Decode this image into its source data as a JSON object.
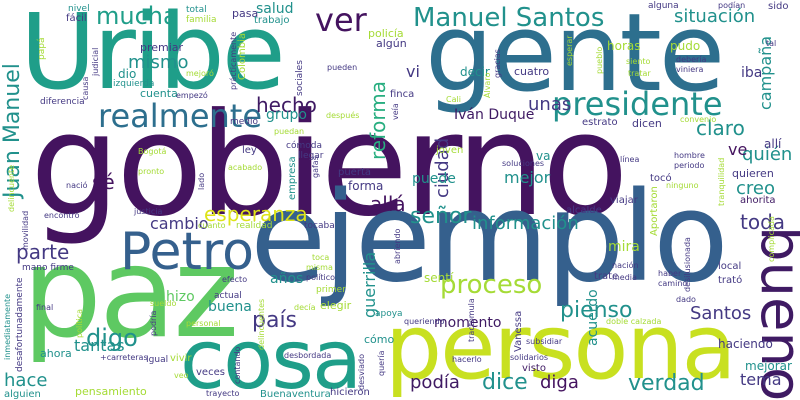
{
  "words": {
    "gobierno": "gobierno",
    "ejemplo": "ejemplo",
    "paz": "paz",
    "gente": "gente",
    "uribe": "Uribe",
    "persona": "persona",
    "cosa": "cosa",
    "bueno": "bueno",
    "petro": "Petro",
    "presidente": "presidente",
    "realmente": "realmente",
    "manuel_santos": "Manuel Santos",
    "juan_manuel": "Juan Manuel",
    "mucha": "mucha",
    "ver": "ver",
    "hecho": "hecho",
    "proceso": "proceso",
    "digo": "digo",
    "pais": "país",
    "reforma": "reforma",
    "esperanza": "esperanza",
    "claro": "claro",
    "verdad": "verdad",
    "senor": "señor",
    "informacion": "información",
    "dice": "dice",
    "pienso": "pienso",
    "santos": "Santos",
    "parte": "parte",
    "cambio": "cambio",
    "toda": "toda",
    "alla": "allá",
    "quien": "quién",
    "situacion": "situación",
    "campana": "campaña",
    "hace": "hace",
    "tantas": "tantas",
    "guerrilla": "guerrilla",
    "ciudad": "ciudad",
    "mejor": "mejor",
    "podia": "podía",
    "diga": "diga",
    "tema": "tema",
    "creo": "creo",
    "salud": "salud",
    "ivan_duque": "Iván Duque",
    "unas": "unas",
    "mismo": "mismo",
    "buena": "buena",
    "hizo": "hizo",
    "anos": "años",
    "se": "sé",
    "ve": "ve",
    "vi": "vi",
    "grupo": "grupo",
    "puede": "puede",
    "momento": "momento",
    "acuerdo": "acuerdo",
    "mira": "mira",
    "alli": "allí",
    "iba": "iba",
    "pudo": "pudo",
    "decir": "decir",
    "cuatro": "cuatro",
    "horas": "horas",
    "dio": "dio",
    "cuenta": "cuenta",
    "premiar": "premiar",
    "izquierda": "izquierda",
    "colombia": "Colombia",
    "policia": "policía",
    "algun": "algún",
    "pasa": "pasa",
    "trabajo": "trabajo",
    "total": "total",
    "familia": "familia",
    "facil": "fácil",
    "nivel": "nivel",
    "papa": "papá",
    "forma": "forma",
    "puerta": "puerta",
    "empresa": "empresa",
    "va": "va",
    "quieren": "quieren",
    "ahorita": "ahorita",
    "alcalde": "alcalde",
    "viajar": "viajar",
    "toco": "tocó",
    "local": "local",
    "trato": "trató",
    "senti": "sentí",
    "trate": "trate",
    "visto": "visto",
    "mejorar": "mejorar",
    "haciendo": "haciendo",
    "ahora": "ahora",
    "pensamiento": "pensamiento",
    "alguien": "alguien",
    "veces": "veces",
    "vivir": "vivir",
    "buenaventura": "Buenaventura",
    "hicieron": "hicieron",
    "elegir": "elegir",
    "primer": "primer",
    "actual": "actual",
    "apoya": "apoya",
    "mano_firme": "mano firme",
    "realidad": "realidad",
    "tocaba": "tocaba",
    "como": "cómo",
    "dicen": "dicen",
    "estrato": "estrato",
    "joven": "joven",
    "finca": "finca",
    "sociales": "sociales",
    "despues": "después",
    "medio": "medio",
    "ley": "ley",
    "comoda": "cómoda",
    "llegar": "llegar",
    "igual": "Igual",
    "bogota": "Bogotá",
    "pronto": "pronto",
    "acabado": "acabado",
    "justicia": "justicia",
    "encontro": "encontró",
    "nacio": "nació",
    "delincuente": "delincuente",
    "movilidad": "movilidad",
    "diferencia": "diferencia",
    "empezo": "empezó",
    "mejoro": "mejoró",
    "practicamente": "prácticamente",
    "pueden": "pueden",
    "alguna": "alguna",
    "podian": "podían",
    "sido": "sido",
    "tal": "tal",
    "deberia": "debería",
    "viniera": "viniera",
    "siento": "siento",
    "tratar": "tratar",
    "convenio": "convenio",
    "hombre": "hombre",
    "periodo": "periodo",
    "ninguno": "ninguno",
    "linea": "línea",
    "soluciones": "soluciones",
    "subsidiar": "subsidiar",
    "solidarios": "solidarios",
    "hacerlo": "hacerlo",
    "queriendo": "queriendo",
    "doble_calzada": "doble calzada",
    "dado": "dado",
    "camino": "camino",
    "haber": "haber",
    "media": "media",
    "nacion": "nación",
    "aportaron": "Aportaron",
    "tranquilidad": "tranquilidad",
    "desilusionada": "desilusionada",
    "complicada": "complicada",
    "vanessa": "Vanessa",
    "desviado": "desviado",
    "queria": "quería",
    "desbordada": "desbordada",
    "delincuentes": "delincuentes",
    "contando": "contando",
    "trayecto": "trayecto",
    "personal": "personal",
    "podria": "podría",
    "decia": "decía",
    "sueldo": "sueldo",
    "carreteras": "+carreteras",
    "efecto": "efecto",
    "misma": "misma",
    "toca": "toca",
    "politico": "político",
    "desafortunadamente": "desafortunadamente",
    "inmediatamente": "inmediatamente",
    "politica": "política",
    "final": "final",
    "veo": "veo",
    "judicial": "judicial",
    "causa": "causa",
    "esperar": "esperar",
    "gracias": "gracias",
    "alvaro": "Álvaro",
    "pueblo": "pueblo",
    "cali": "Cali",
    "puedan": "puedan",
    "veia": "veía",
    "gafas": "gafas",
    "lado": "lado",
    "cuanto": "cuanto",
    "abriendo": "abriendo",
    "tractomula": "tractomula"
  }
}
